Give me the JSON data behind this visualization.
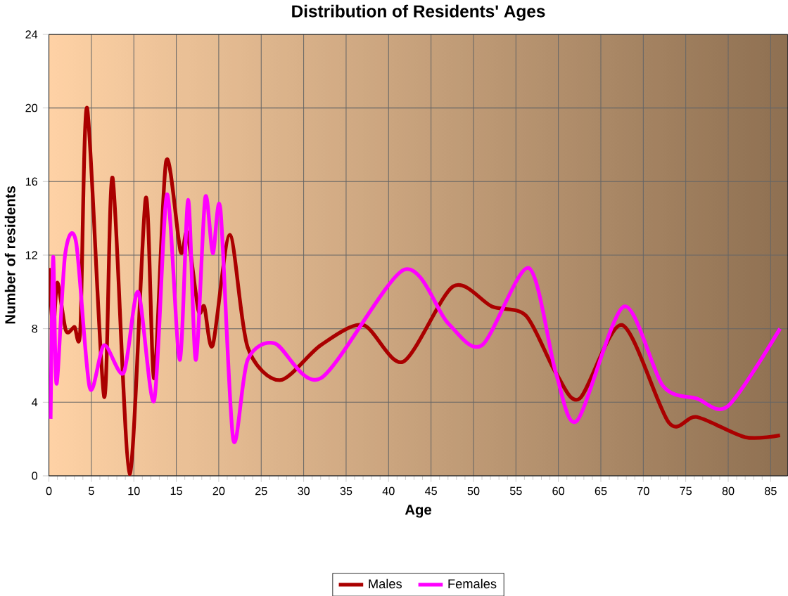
{
  "chart_data": {
    "type": "line",
    "title": "Distribution of Residents' Ages",
    "xlabel": "Age",
    "ylabel": "Number of residents",
    "xlim": [
      0,
      87
    ],
    "ylim": [
      0,
      24
    ],
    "xticks": [
      0,
      5,
      10,
      15,
      20,
      25,
      30,
      35,
      40,
      45,
      50,
      55,
      60,
      65,
      70,
      75,
      80,
      85
    ],
    "yticks": [
      0,
      4,
      8,
      12,
      16,
      20,
      24
    ],
    "grid": true,
    "legend": "bottom",
    "marker": "none",
    "line_style": "solid",
    "series": [
      {
        "name": "Males",
        "color": "#aa0000",
        "x": [
          0,
          0.5,
          1,
          2,
          3,
          3.7,
          4.5,
          6.5,
          7.5,
          9.5,
          11.4,
          12.4,
          13.8,
          15.5,
          16.3,
          17.6,
          18.3,
          19.3,
          21.3,
          23.4,
          27.2,
          32,
          37,
          41.7,
          47.6,
          52.2,
          56.2,
          59.7,
          62.5,
          67.5,
          73,
          76.3,
          82,
          86.1
        ],
        "values": [
          11.3,
          8,
          10.5,
          7.9,
          8.1,
          8,
          20,
          4.3,
          16.2,
          0.1,
          15.1,
          5.3,
          17.1,
          12.2,
          13.2,
          9,
          9.2,
          7.1,
          13.1,
          7,
          5.2,
          7.1,
          8.2,
          6.2,
          10.3,
          9.2,
          8.7,
          5.6,
          4.2,
          8.2,
          2.9,
          3.2,
          2.1,
          2.2
        ]
      },
      {
        "name": "Females",
        "color": "#ff00ff",
        "x": [
          0.2,
          0.5,
          0.9,
          1.9,
          3.2,
          4.8,
          6.5,
          8.8,
          10.5,
          12.4,
          13.9,
          15.4,
          16.4,
          17.3,
          18.4,
          19.3,
          20.2,
          21.7,
          23.4,
          26.6,
          32,
          41.8,
          47,
          51,
          56.5,
          59.7,
          62.2,
          67.7,
          72.3,
          76.3,
          80,
          86.1
        ],
        "values": [
          3.1,
          11.9,
          5,
          12,
          12.7,
          4.8,
          7.1,
          5.6,
          10,
          4.1,
          15.3,
          6.3,
          15,
          6.3,
          15.1,
          12.1,
          14.5,
          2,
          6.3,
          7.2,
          5.3,
          11.2,
          8.3,
          7.1,
          11.3,
          5.6,
          3,
          9.2,
          4.9,
          4.2,
          3.8,
          8
        ]
      }
    ]
  }
}
